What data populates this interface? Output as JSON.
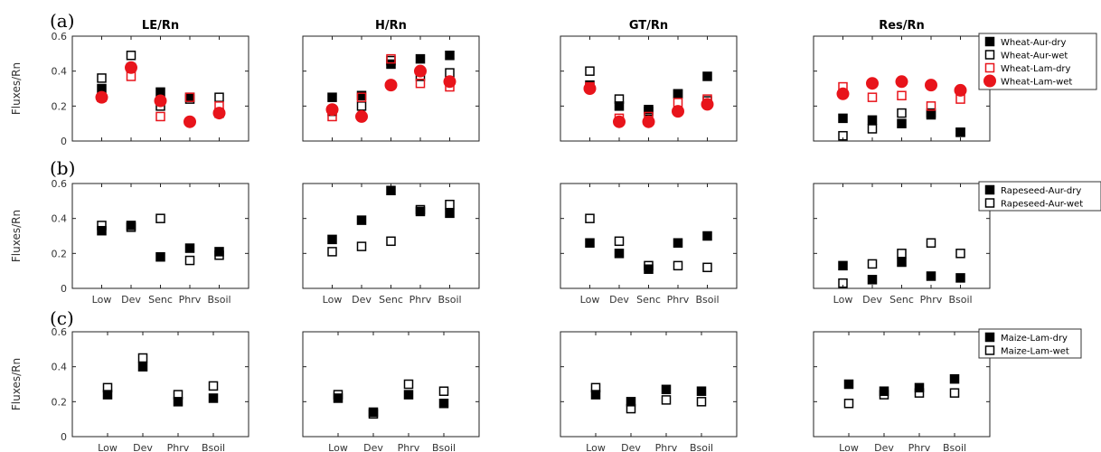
{
  "figure": {
    "row_labels": [
      "(a)",
      "(b)",
      "(c)"
    ],
    "ylabel": "Fluxes/Rn",
    "column_titles": [
      "LE/Rn",
      "H/Rn",
      "GT/Rn",
      "Res/Rn"
    ]
  },
  "colors": {
    "black": "#000000",
    "red": "#e8141b"
  },
  "chart_data": [
    {
      "type": "scatter",
      "row": 0,
      "ylim": [
        0,
        0.6
      ],
      "yticks": [
        "0",
        "0.2",
        "0.4",
        "0.6"
      ],
      "categories": [
        "Low",
        "Dev",
        "Senc",
        "Phrv",
        "Bsoil"
      ],
      "show_xticks": false,
      "legend": [
        {
          "label": "Wheat-Aur-dry",
          "color": "#000000",
          "marker": "square-filled"
        },
        {
          "label": "Wheat-Aur-wet",
          "color": "#000000",
          "marker": "square-open"
        },
        {
          "label": "Wheat-Lam-dry",
          "color": "#e8141b",
          "marker": "square-open"
        },
        {
          "label": "Wheat-Lam-wet",
          "color": "#e8141b",
          "marker": "circle-filled"
        }
      ],
      "legend_placement": "top-right",
      "panels": [
        {
          "title": "LE/Rn",
          "series": [
            {
              "name": "Wheat-Aur-dry",
              "values": [
                0.3,
                0.42,
                0.28,
                0.25,
                0.16
              ]
            },
            {
              "name": "Wheat-Aur-wet",
              "values": [
                0.36,
                0.49,
                0.2,
                0.24,
                0.25
              ]
            },
            {
              "name": "Wheat-Lam-dry",
              "values": [
                0.25,
                0.37,
                0.14,
                0.25,
                0.2
              ]
            },
            {
              "name": "Wheat-Lam-wet",
              "values": [
                0.25,
                0.42,
                0.23,
                0.11,
                0.16
              ]
            }
          ]
        },
        {
          "title": "H/Rn",
          "series": [
            {
              "name": "Wheat-Aur-dry",
              "values": [
                0.25,
                0.26,
                0.44,
                0.47,
                0.49
              ]
            },
            {
              "name": "Wheat-Aur-wet",
              "values": [
                0.17,
                0.2,
                0.46,
                0.37,
                0.39
              ]
            },
            {
              "name": "Wheat-Lam-dry",
              "values": [
                0.14,
                0.25,
                0.47,
                0.33,
                0.31
              ]
            },
            {
              "name": "Wheat-Lam-wet",
              "values": [
                0.18,
                0.14,
                0.32,
                0.4,
                0.34
              ]
            }
          ]
        },
        {
          "title": "GT/Rn",
          "series": [
            {
              "name": "Wheat-Aur-dry",
              "values": [
                0.32,
                0.2,
                0.18,
                0.27,
                0.37
              ]
            },
            {
              "name": "Wheat-Aur-wet",
              "values": [
                0.4,
                0.24,
                0.17,
                0.27,
                0.23
              ]
            },
            {
              "name": "Wheat-Lam-dry",
              "values": [
                0.31,
                0.13,
                0.14,
                0.22,
                0.24
              ]
            },
            {
              "name": "Wheat-Lam-wet",
              "values": [
                0.3,
                0.11,
                0.11,
                0.17,
                0.21
              ]
            }
          ]
        },
        {
          "title": "Res/Rn",
          "series": [
            {
              "name": "Wheat-Aur-dry",
              "values": [
                0.13,
                0.12,
                0.1,
                0.15,
                0.05
              ]
            },
            {
              "name": "Wheat-Aur-wet",
              "values": [
                0.03,
                0.07,
                0.16,
                0.16,
                0.05
              ]
            },
            {
              "name": "Wheat-Lam-dry",
              "values": [
                0.31,
                0.25,
                0.26,
                0.2,
                0.24
              ]
            },
            {
              "name": "Wheat-Lam-wet",
              "values": [
                0.27,
                0.33,
                0.34,
                0.32,
                0.29
              ]
            }
          ]
        }
      ]
    },
    {
      "type": "scatter",
      "row": 1,
      "ylim": [
        0,
        0.6
      ],
      "yticks": [
        "0",
        "0.2",
        "0.4",
        "0.6"
      ],
      "categories": [
        "Low",
        "Dev",
        "Senc",
        "Phrv",
        "Bsoil"
      ],
      "show_xticks": true,
      "legend": [
        {
          "label": "Rapeseed-Aur-dry",
          "color": "#000000",
          "marker": "square-filled"
        },
        {
          "label": "Rapeseed-Aur-wet",
          "color": "#000000",
          "marker": "square-open"
        }
      ],
      "legend_placement": "top-right",
      "panels": [
        {
          "title": "",
          "series": [
            {
              "name": "Rapeseed-Aur-dry",
              "values": [
                0.33,
                0.36,
                0.18,
                0.23,
                0.21
              ]
            },
            {
              "name": "Rapeseed-Aur-wet",
              "values": [
                0.36,
                0.35,
                0.4,
                0.16,
                0.19
              ]
            }
          ]
        },
        {
          "title": "",
          "series": [
            {
              "name": "Rapeseed-Aur-dry",
              "values": [
                0.28,
                0.39,
                0.56,
                0.44,
                0.43
              ]
            },
            {
              "name": "Rapeseed-Aur-wet",
              "values": [
                0.21,
                0.24,
                0.27,
                0.45,
                0.48
              ]
            }
          ]
        },
        {
          "title": "",
          "series": [
            {
              "name": "Rapeseed-Aur-dry",
              "values": [
                0.26,
                0.2,
                0.11,
                0.26,
                0.3
              ]
            },
            {
              "name": "Rapeseed-Aur-wet",
              "values": [
                0.4,
                0.27,
                0.13,
                0.13,
                0.12
              ]
            }
          ]
        },
        {
          "title": "",
          "series": [
            {
              "name": "Rapeseed-Aur-dry",
              "values": [
                0.13,
                0.05,
                0.15,
                0.07,
                0.06
              ]
            },
            {
              "name": "Rapeseed-Aur-wet",
              "values": [
                0.03,
                0.14,
                0.2,
                0.26,
                0.2
              ]
            }
          ]
        }
      ]
    },
    {
      "type": "scatter",
      "row": 2,
      "ylim": [
        0,
        0.6
      ],
      "yticks": [
        "0",
        "0.2",
        "0.4",
        "0.6"
      ],
      "categories": [
        "Low",
        "Dev",
        "Phrv",
        "Bsoil"
      ],
      "show_xticks": true,
      "legend": [
        {
          "label": "Maize-Lam-dry",
          "color": "#000000",
          "marker": "square-filled"
        },
        {
          "label": "Maize-Lam-wet",
          "color": "#000000",
          "marker": "square-open"
        }
      ],
      "legend_placement": "top-right",
      "panels": [
        {
          "title": "",
          "series": [
            {
              "name": "Maize-Lam-dry",
              "values": [
                0.24,
                0.4,
                0.2,
                0.22
              ]
            },
            {
              "name": "Maize-Lam-wet",
              "values": [
                0.28,
                0.45,
                0.24,
                0.29
              ]
            }
          ]
        },
        {
          "title": "",
          "series": [
            {
              "name": "Maize-Lam-dry",
              "values": [
                0.22,
                0.14,
                0.24,
                0.19
              ]
            },
            {
              "name": "Maize-Lam-wet",
              "values": [
                0.24,
                0.13,
                0.3,
                0.26
              ]
            }
          ]
        },
        {
          "title": "",
          "series": [
            {
              "name": "Maize-Lam-dry",
              "values": [
                0.24,
                0.2,
                0.27,
                0.26
              ]
            },
            {
              "name": "Maize-Lam-wet",
              "values": [
                0.28,
                0.16,
                0.21,
                0.2
              ]
            }
          ]
        },
        {
          "title": "",
          "series": [
            {
              "name": "Maize-Lam-dry",
              "values": [
                0.3,
                0.26,
                0.28,
                0.33
              ]
            },
            {
              "name": "Maize-Lam-wet",
              "values": [
                0.19,
                0.24,
                0.25,
                0.25
              ]
            }
          ]
        }
      ]
    }
  ]
}
